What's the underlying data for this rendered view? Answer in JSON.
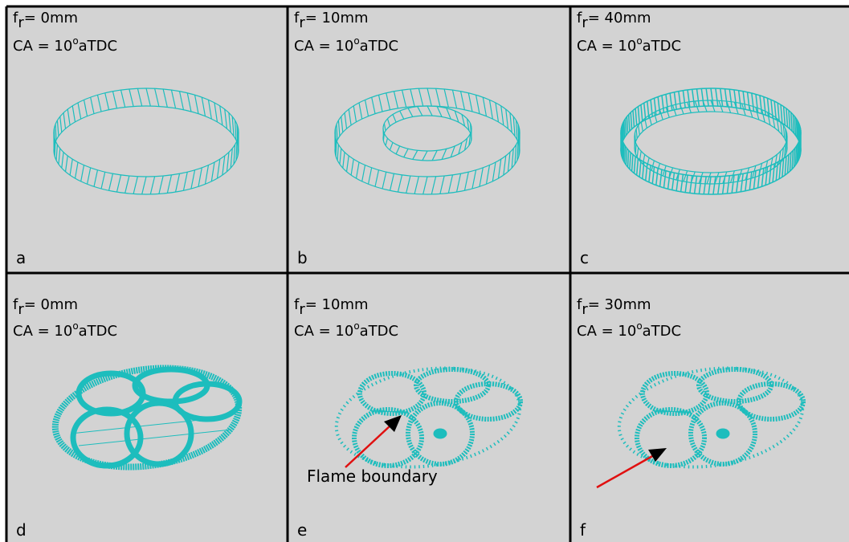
{
  "panels": [
    {
      "label": "a",
      "f": "f",
      "f_sub": "r",
      "f_value": "= 0mm",
      "ca": "CA = 10",
      "ca_sup": "o",
      "ca_unit": "aTDC"
    },
    {
      "label": "b",
      "f": "f",
      "f_sub": "r",
      "f_value": "= 10mm",
      "ca": "CA = 10",
      "ca_sup": "o",
      "ca_unit": "aTDC"
    },
    {
      "label": "c",
      "f": "f",
      "f_sub": "r",
      "f_value": "= 40mm",
      "ca": "CA = 10",
      "ca_sup": "o",
      "ca_unit": "aTDC"
    },
    {
      "label": "d",
      "f": "f",
      "f_sub": "r",
      "f_value": "= 0mm",
      "ca": "CA = 10",
      "ca_sup": "o",
      "ca_unit": "aTDC"
    },
    {
      "label": "e",
      "f": "f",
      "f_sub": "r",
      "f_value": "= 10mm",
      "ca": "CA = 10",
      "ca_sup": "o",
      "ca_unit": "aTDC"
    },
    {
      "label": "f",
      "f": "f",
      "f_sub": "r",
      "f_value": "= 30mm",
      "ca": "CA = 10",
      "ca_sup": "o",
      "ca_unit": "aTDC"
    }
  ],
  "annotation": "Flame boundary"
}
